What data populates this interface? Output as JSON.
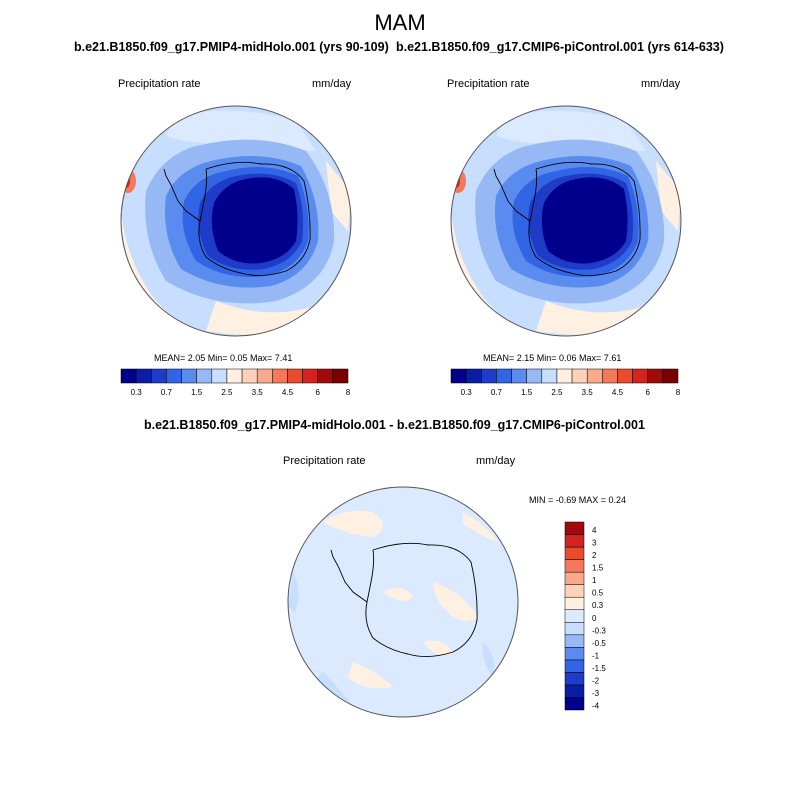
{
  "season": "MAM",
  "panels": [
    {
      "title": "b.e21.B1850.f09_g17.PMIP4-midHolo.001 (yrs 90-109)",
      "variable": "Precipitation rate",
      "units": "mm/day",
      "stats_text": "MEAN=   2.05  Min=   0.05  Max=   7.41",
      "mean": 2.05,
      "min": 0.05,
      "max": 7.41
    },
    {
      "title": "b.e21.B1850.f09_g17.CMIP6-piControl.001 (yrs 614-633)",
      "variable": "Precipitation rate",
      "units": "mm/day",
      "stats_text": "MEAN=   2.15  Min=   0.06  Max=   7.61",
      "mean": 2.15,
      "min": 0.06,
      "max": 7.61
    }
  ],
  "diff_panel": {
    "title": "b.e21.B1850.f09_g17.PMIP4-midHolo.001 - b.e21.B1850.f09_g17.CMIP6-piControl.001",
    "variable": "Precipitation rate",
    "units": "mm/day",
    "stats_text": "MIN =  -0.69 MAX =   0.24",
    "min": -0.69,
    "max": 0.24
  },
  "colorbar_abs": {
    "colors": [
      "#00008c",
      "#0a1ea5",
      "#1e3cc8",
      "#3264e6",
      "#5a8cf0",
      "#96b9f5",
      "#c8deff",
      "#fff0e1",
      "#fcd2b9",
      "#faaa8c",
      "#f5785a",
      "#eb4b2d",
      "#d2231e",
      "#a00a0a",
      "#780000"
    ],
    "tick_labels": [
      "0.3",
      "0.7",
      "1.5",
      "2.5",
      "3.5",
      "4.5",
      "6",
      "8"
    ]
  },
  "colorbar_diff": {
    "colors": [
      "#00008c",
      "#0a1ea5",
      "#1e3cc8",
      "#3264e6",
      "#5a8cf0",
      "#96b9f5",
      "#c8deff",
      "#dbeaff",
      "#fff0e1",
      "#fcd2b9",
      "#faaa8c",
      "#f5785a",
      "#eb4b2d",
      "#d2231e",
      "#a00a0a"
    ],
    "tick_labels": [
      "4",
      "3",
      "2",
      "1.5",
      "1",
      "0.5",
      "0.3",
      "0",
      "-0.3",
      "-0.5",
      "-1",
      "-1.5",
      "-2",
      "-3",
      "-4"
    ]
  }
}
